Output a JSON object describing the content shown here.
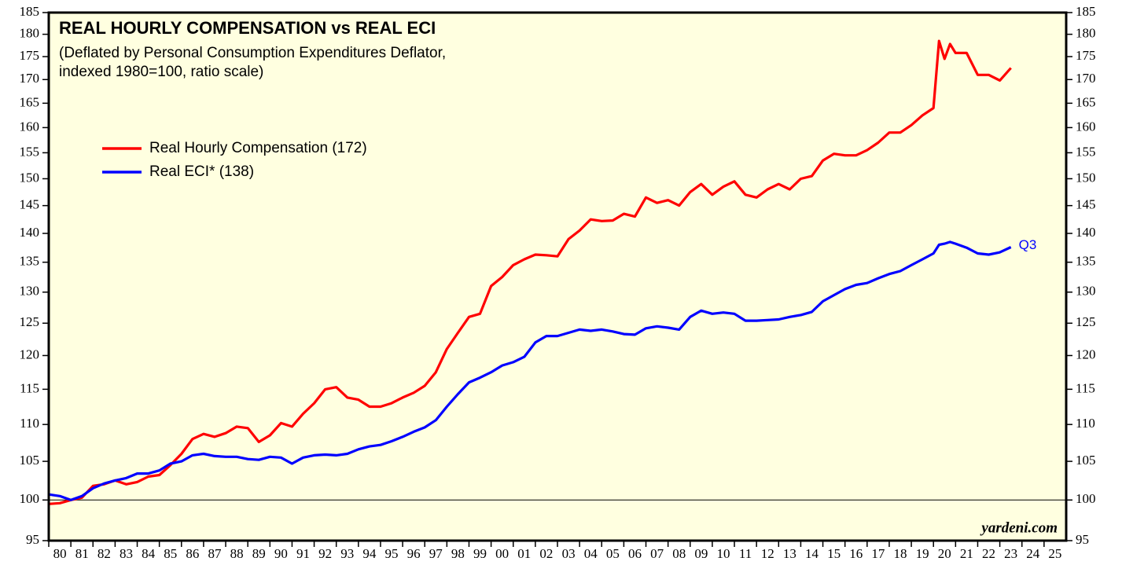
{
  "chart_data": {
    "type": "line",
    "title": "REAL HOURLY COMPENSATION vs REAL ECI",
    "subtitle": [
      "(Deflated by Personal Consumption Expenditures Deflator,",
      "indexed 1980=100, ratio scale)"
    ],
    "annotation": "Q3",
    "source": "yardeni.com",
    "log_scale": true,
    "ylim": [
      95,
      185
    ],
    "yticks": [
      95,
      100,
      105,
      110,
      115,
      120,
      125,
      130,
      135,
      140,
      145,
      150,
      155,
      160,
      165,
      170,
      175,
      180,
      185
    ],
    "reference_line": 100,
    "xlim": [
      1980,
      2026
    ],
    "xticks": [
      {
        "value": 1980,
        "label": "80"
      },
      {
        "value": 1981,
        "label": "81"
      },
      {
        "value": 1982,
        "label": "82"
      },
      {
        "value": 1983,
        "label": "83"
      },
      {
        "value": 1984,
        "label": "84"
      },
      {
        "value": 1985,
        "label": "85"
      },
      {
        "value": 1986,
        "label": "86"
      },
      {
        "value": 1987,
        "label": "87"
      },
      {
        "value": 1988,
        "label": "88"
      },
      {
        "value": 1989,
        "label": "89"
      },
      {
        "value": 1990,
        "label": "90"
      },
      {
        "value": 1991,
        "label": "91"
      },
      {
        "value": 1992,
        "label": "92"
      },
      {
        "value": 1993,
        "label": "93"
      },
      {
        "value": 1994,
        "label": "94"
      },
      {
        "value": 1995,
        "label": "95"
      },
      {
        "value": 1996,
        "label": "96"
      },
      {
        "value": 1997,
        "label": "97"
      },
      {
        "value": 1998,
        "label": "98"
      },
      {
        "value": 1999,
        "label": "99"
      },
      {
        "value": 2000,
        "label": "00"
      },
      {
        "value": 2001,
        "label": "01"
      },
      {
        "value": 2002,
        "label": "02"
      },
      {
        "value": 2003,
        "label": "03"
      },
      {
        "value": 2004,
        "label": "04"
      },
      {
        "value": 2005,
        "label": "05"
      },
      {
        "value": 2006,
        "label": "06"
      },
      {
        "value": 2007,
        "label": "07"
      },
      {
        "value": 2008,
        "label": "08"
      },
      {
        "value": 2009,
        "label": "09"
      },
      {
        "value": 2010,
        "label": "10"
      },
      {
        "value": 2011,
        "label": "11"
      },
      {
        "value": 2012,
        "label": "12"
      },
      {
        "value": 2013,
        "label": "13"
      },
      {
        "value": 2014,
        "label": "14"
      },
      {
        "value": 2015,
        "label": "15"
      },
      {
        "value": 2016,
        "label": "16"
      },
      {
        "value": 2017,
        "label": "17"
      },
      {
        "value": 2018,
        "label": "18"
      },
      {
        "value": 2019,
        "label": "19"
      },
      {
        "value": 2020,
        "label": "20"
      },
      {
        "value": 2021,
        "label": "21"
      },
      {
        "value": 2022,
        "label": "22"
      },
      {
        "value": 2023,
        "label": "23"
      },
      {
        "value": 2024,
        "label": "24"
      },
      {
        "value": 2025,
        "label": "25"
      }
    ],
    "x": [
      1980,
      1980.5,
      1981,
      1981.5,
      1982,
      1982.5,
      1983,
      1983.5,
      1984,
      1984.5,
      1985,
      1985.5,
      1986,
      1986.5,
      1987,
      1987.5,
      1988,
      1988.5,
      1989,
      1989.5,
      1990,
      1990.5,
      1991,
      1991.5,
      1992,
      1992.5,
      1993,
      1993.5,
      1994,
      1994.5,
      1995,
      1995.5,
      1996,
      1996.5,
      1997,
      1997.5,
      1998,
      1998.5,
      1999,
      1999.5,
      2000,
      2000.5,
      2001,
      2001.5,
      2002,
      2002.5,
      2003,
      2003.5,
      2004,
      2004.5,
      2005,
      2005.5,
      2006,
      2006.5,
      2007,
      2007.5,
      2008,
      2008.5,
      2009,
      2009.5,
      2010,
      2010.5,
      2011,
      2011.5,
      2012,
      2012.5,
      2013,
      2013.5,
      2014,
      2014.5,
      2015,
      2015.5,
      2016,
      2016.5,
      2017,
      2017.5,
      2018,
      2018.5,
      2019,
      2019.5,
      2020,
      2020.25,
      2020.5,
      2020.75,
      2021,
      2021.5,
      2022,
      2022.5,
      2023,
      2023.5
    ],
    "series": [
      {
        "name": "Real Hourly Compensation (172)",
        "color": "#ff0000",
        "values": [
          99.5,
          99.6,
          100,
          100.3,
          101.8,
          102,
          102.5,
          102,
          102.3,
          103,
          103.2,
          104.5,
          106,
          108,
          108.7,
          108.3,
          108.8,
          109.7,
          109.5,
          107.6,
          108.5,
          110.2,
          109.7,
          111.5,
          113,
          115,
          115.3,
          113.8,
          113.5,
          112.5,
          112.5,
          113,
          113.8,
          114.5,
          115.5,
          117.5,
          121,
          123.5,
          126,
          126.5,
          131,
          132.5,
          134.5,
          135.5,
          136.3,
          136.2,
          136,
          139,
          140.5,
          142.5,
          142.2,
          142.3,
          143.5,
          143,
          146.5,
          145.5,
          146,
          145,
          147.5,
          149,
          147,
          148.5,
          149.5,
          147,
          146.5,
          148,
          149,
          148,
          150,
          150.5,
          153.5,
          154.8,
          154.5,
          154.5,
          155.5,
          157,
          159,
          159,
          160.5,
          162.5,
          164,
          178.5,
          174.5,
          177.8,
          175.8,
          175.8,
          171,
          171,
          169.8,
          172.5
        ]
      },
      {
        "name": "Real ECI* (138)",
        "color": "#0000ff",
        "values": [
          100.7,
          100.5,
          100,
          100.5,
          101.5,
          102.1,
          102.5,
          102.8,
          103.4,
          103.4,
          103.8,
          104.7,
          105,
          105.8,
          106,
          105.7,
          105.6,
          105.6,
          105.3,
          105.2,
          105.6,
          105.5,
          104.7,
          105.5,
          105.8,
          105.9,
          105.8,
          106,
          106.6,
          107,
          107.2,
          107.7,
          108.3,
          109,
          109.6,
          110.6,
          112.5,
          114.3,
          116,
          116.7,
          117.5,
          118.5,
          119,
          119.8,
          122,
          123,
          123,
          123.5,
          124,
          123.8,
          124,
          123.7,
          123.3,
          123.2,
          124.2,
          124.5,
          124.3,
          124,
          126,
          127,
          126.5,
          126.7,
          126.5,
          125.4,
          125.4,
          125.5,
          125.6,
          126,
          126.3,
          126.8,
          128.5,
          129.5,
          130.5,
          131.2,
          131.5,
          132.3,
          133,
          133.5,
          134.5,
          135.5,
          136.5,
          138,
          138.2,
          138.5,
          138.2,
          137.5,
          136.5,
          136.3,
          136.7,
          137.6
        ]
      }
    ]
  }
}
